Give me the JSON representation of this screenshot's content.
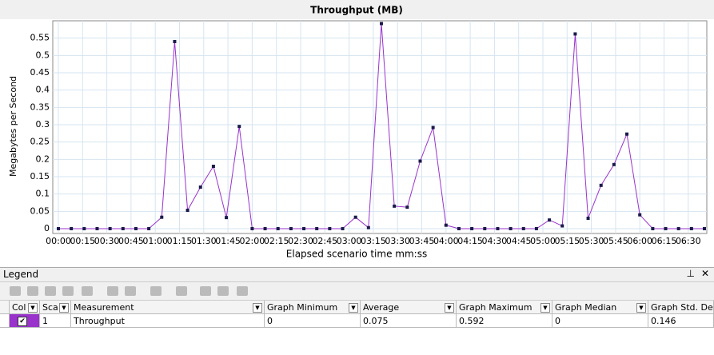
{
  "chart_data": {
    "type": "line",
    "title": "Throughput (MB)",
    "x_label": "Elapsed scenario time mm:ss",
    "y_label": "Megabytes per Second",
    "x": [
      0,
      8,
      16,
      24,
      32,
      40,
      48,
      56,
      64,
      72,
      80,
      88,
      96,
      104,
      112,
      120,
      128,
      136,
      144,
      152,
      160,
      168,
      176,
      184,
      192,
      200,
      208,
      216,
      224,
      232,
      240,
      248,
      256,
      264,
      272,
      280,
      288,
      296,
      304,
      312,
      320,
      328,
      336,
      344,
      352,
      360,
      368,
      376,
      384,
      392,
      400
    ],
    "series": [
      {
        "name": "Throughput",
        "color": "#9933cc",
        "values": [
          0,
          0,
          0,
          0,
          0,
          0,
          0,
          0,
          0.033,
          0.54,
          0.053,
          0.12,
          0.18,
          0.032,
          0.295,
          0,
          0,
          0,
          0,
          0,
          0,
          0,
          0,
          0.033,
          0.003,
          0.592,
          0.065,
          0.062,
          0.195,
          0.292,
          0.01,
          0,
          0,
          0,
          0,
          0,
          0,
          0,
          0.025,
          0.008,
          0.562,
          0.03,
          0.125,
          0.185,
          0.273,
          0.04,
          0,
          0,
          0,
          0,
          0
        ]
      }
    ],
    "xlim": [
      0,
      400
    ],
    "ylim": [
      0,
      0.6
    ],
    "xticks": [
      {
        "value": 0,
        "label": "00:00"
      },
      {
        "value": 15,
        "label": "00:15"
      },
      {
        "value": 30,
        "label": "00:30"
      },
      {
        "value": 45,
        "label": "00:45"
      },
      {
        "value": 60,
        "label": "01:00"
      },
      {
        "value": 75,
        "label": "01:15"
      },
      {
        "value": 90,
        "label": "01:30"
      },
      {
        "value": 105,
        "label": "01:45"
      },
      {
        "value": 120,
        "label": "02:00"
      },
      {
        "value": 135,
        "label": "02:15"
      },
      {
        "value": 150,
        "label": "02:30"
      },
      {
        "value": 165,
        "label": "02:45"
      },
      {
        "value": 180,
        "label": "03:00"
      },
      {
        "value": 195,
        "label": "03:15"
      },
      {
        "value": 210,
        "label": "03:30"
      },
      {
        "value": 225,
        "label": "03:45"
      },
      {
        "value": 240,
        "label": "04:00"
      },
      {
        "value": 255,
        "label": "04:15"
      },
      {
        "value": 270,
        "label": "04:30"
      },
      {
        "value": 285,
        "label": "04:45"
      },
      {
        "value": 300,
        "label": "05:00"
      },
      {
        "value": 315,
        "label": "05:15"
      },
      {
        "value": 330,
        "label": "05:30"
      },
      {
        "value": 345,
        "label": "05:45"
      },
      {
        "value": 360,
        "label": "06:00"
      },
      {
        "value": 375,
        "label": "06:15"
      },
      {
        "value": 390,
        "label": "06:30"
      }
    ],
    "yticks": [
      0,
      0.05,
      0.1,
      0.15,
      0.2,
      0.25,
      0.3,
      0.35,
      0.4,
      0.45,
      0.5,
      0.55
    ],
    "grid": true
  },
  "legend": {
    "title": "Legend",
    "columns": [
      "Col",
      "Sca",
      "Measurement",
      "Graph Minimum",
      "Average",
      "Graph Maximum",
      "Graph Median",
      "Graph Std. Devi"
    ],
    "rows": [
      [
        "1",
        "Throughput",
        "0",
        "0.075",
        "0.592",
        "0",
        "0.146"
      ]
    ]
  }
}
